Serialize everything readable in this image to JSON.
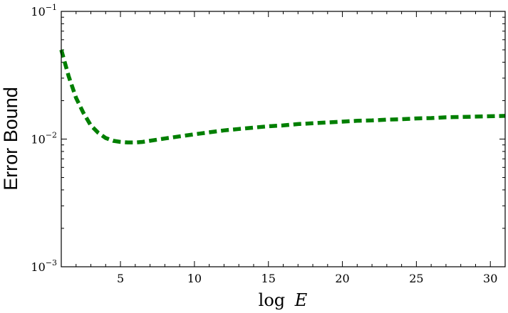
{
  "chart_data": {
    "type": "line",
    "title": "",
    "xlabel_prefix": "log",
    "xlabel_var": "E",
    "ylabel": "Error Bound",
    "xlim": [
      1,
      31
    ],
    "ylim": [
      0.001,
      0.1
    ],
    "yscale": "log",
    "grid": false,
    "legend": "none",
    "x_ticks": [
      5,
      10,
      15,
      20,
      25,
      30
    ],
    "x_tick_labels": [
      "5",
      "10",
      "15",
      "20",
      "25",
      "30"
    ],
    "y_ticks": [
      0.001,
      0.01,
      0.1
    ],
    "y_tick_labels": [
      {
        "base": "10",
        "exp": "−3"
      },
      {
        "base": "10",
        "exp": "−2"
      },
      {
        "base": "10",
        "exp": "−1"
      }
    ],
    "series": [
      {
        "color": "#007f00",
        "style": "dashed",
        "x": [
          1,
          1.5,
          2,
          2.5,
          3,
          3.5,
          4,
          4.5,
          5,
          5.5,
          6,
          6.5,
          7,
          8,
          9,
          10,
          11,
          12,
          13,
          14,
          15,
          16,
          17,
          18,
          19,
          20,
          21,
          22,
          23,
          24,
          25,
          26,
          27,
          28,
          29,
          30,
          31
        ],
        "y": [
          0.05,
          0.031,
          0.021,
          0.016,
          0.0128,
          0.0112,
          0.0102,
          0.0097,
          0.0095,
          0.0094,
          0.0094,
          0.0095,
          0.0097,
          0.0101,
          0.0105,
          0.0109,
          0.0113,
          0.0117,
          0.012,
          0.0123,
          0.0126,
          0.0128,
          0.0131,
          0.0133,
          0.0135,
          0.0137,
          0.0139,
          0.014,
          0.0142,
          0.0143,
          0.0145,
          0.0146,
          0.0148,
          0.0149,
          0.015,
          0.0151,
          0.0152
        ]
      }
    ]
  }
}
